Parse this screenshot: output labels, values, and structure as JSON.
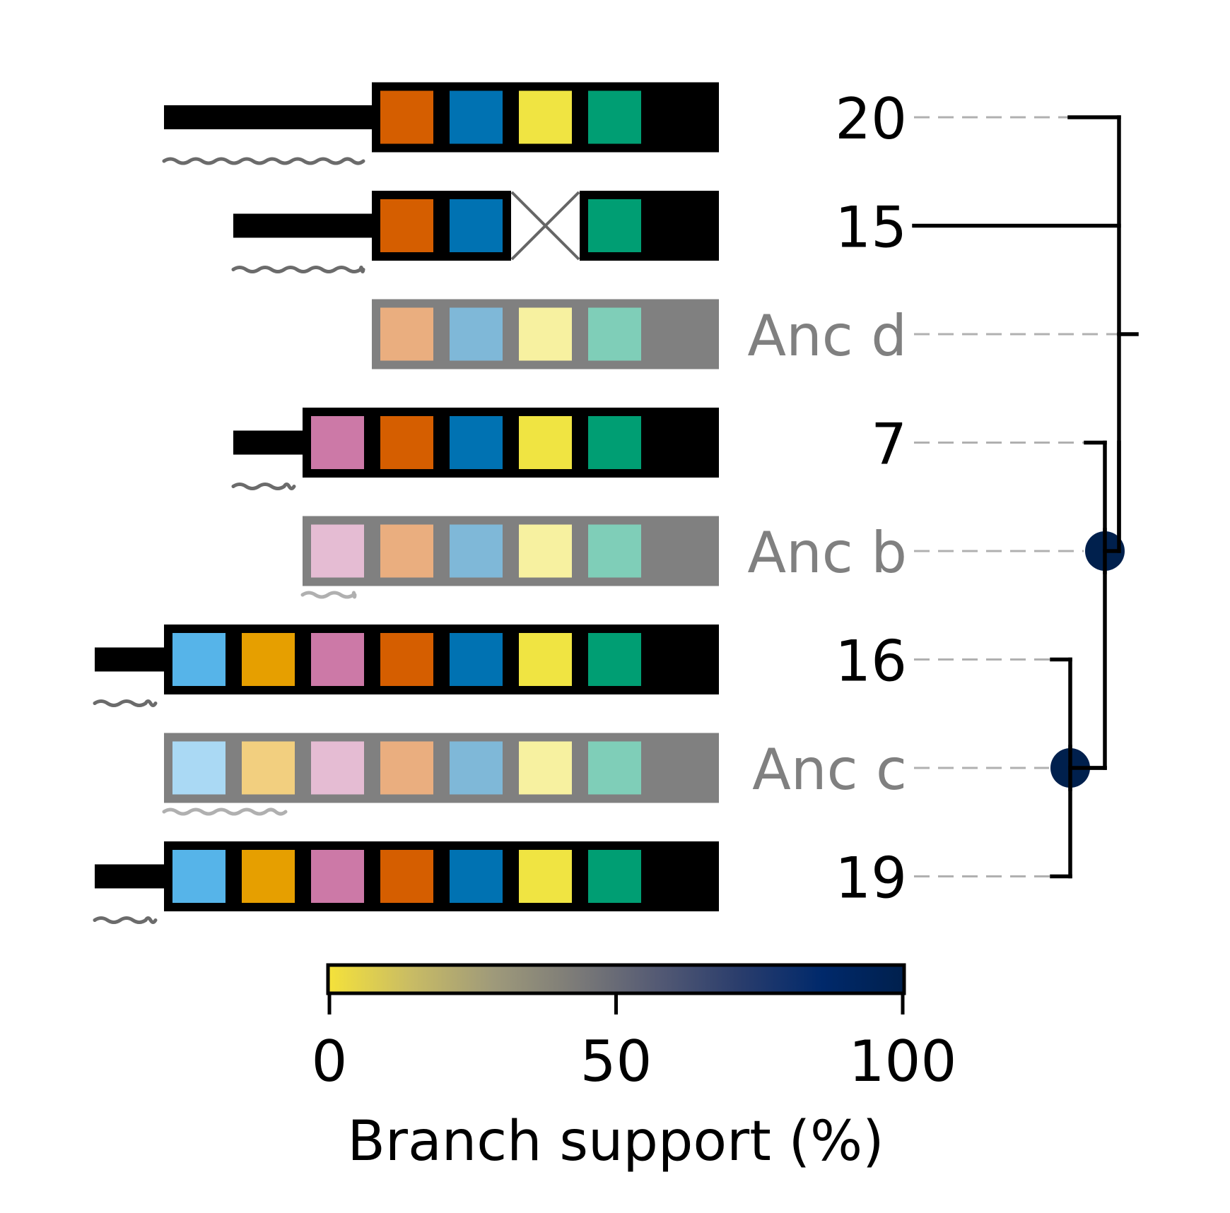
{
  "colors": {
    "palette": [
      "#56B4E9",
      "#E69F00",
      "#CC79A7",
      "#D55E00",
      "#0072B2",
      "#F0E442",
      "#009E73",
      "#000000"
    ],
    "faded": [
      "#AAD9F4",
      "#F2CF7F",
      "#E5BCD3",
      "#EAAE7F",
      "#7FB8D8",
      "#F7F1A0",
      "#7FCEB8",
      "#808080"
    ],
    "support_high": "#00204D",
    "label_anc": "#808080",
    "guide": "#b0b0b0"
  },
  "rows": [
    {
      "label": "20",
      "ancestral": false,
      "first_index": 3,
      "missing": [],
      "prefix_bars": 3
    },
    {
      "label": "15",
      "ancestral": false,
      "first_index": 3,
      "missing": [
        5
      ],
      "prefix_bars": 2
    },
    {
      "label": "Anc d",
      "ancestral": true,
      "first_index": 3,
      "missing": [],
      "prefix_bars": 0
    },
    {
      "label": "7",
      "ancestral": false,
      "first_index": 2,
      "missing": [],
      "prefix_bars": 1
    },
    {
      "label": "Anc b",
      "ancestral": true,
      "first_index": 2,
      "missing": [],
      "prefix_bars": 0
    },
    {
      "label": "16",
      "ancestral": false,
      "first_index": 0,
      "missing": [],
      "prefix_bars": 1
    },
    {
      "label": "Anc c",
      "ancestral": true,
      "first_index": 0,
      "missing": [],
      "prefix_bars": 0
    },
    {
      "label": "19",
      "ancestral": false,
      "first_index": 0,
      "missing": [],
      "prefix_bars": 1
    }
  ],
  "tree": {
    "nodes": [
      {
        "name": "Anc b",
        "support": 100
      },
      {
        "name": "Anc c",
        "support": 100
      }
    ]
  },
  "colorbar": {
    "label": "Branch support (%)",
    "ticks": [
      0,
      50,
      100
    ],
    "stops": [
      "#F5E23A",
      "#C9BC64",
      "#9F9A7A",
      "#7C7B78",
      "#545A74",
      "#2A3D6C",
      "#00296B",
      "#00204D"
    ]
  }
}
